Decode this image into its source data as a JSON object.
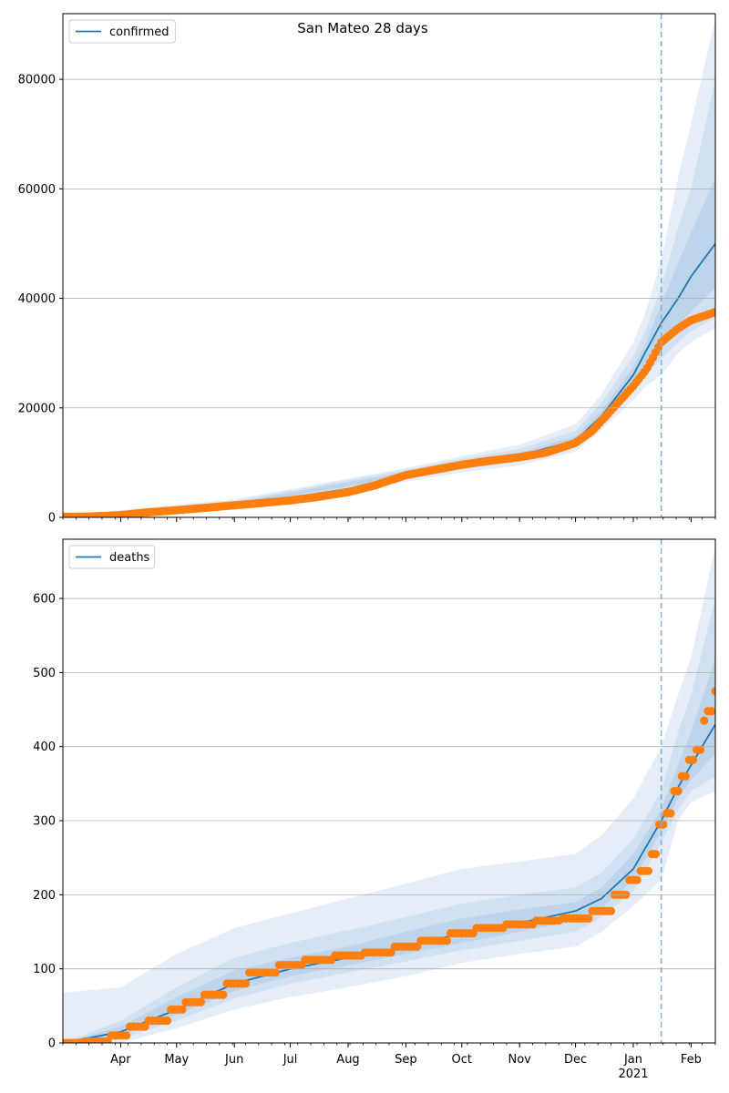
{
  "title": "San Mateo 28 days",
  "chart_data": [
    {
      "type": "line",
      "title": "San Mateo 28 days",
      "legend": {
        "entries": [
          "confirmed"
        ],
        "placement": "top-left"
      },
      "x_range": [
        "2020-03-01",
        "2021-02-14"
      ],
      "ylim": [
        0,
        92000
      ],
      "yticks": [
        0,
        20000,
        40000,
        60000,
        80000
      ],
      "grid": "y",
      "forecast_start": "2021-01-16",
      "observed": {
        "x": [
          "2020-03-01",
          "2020-03-15",
          "2020-04-01",
          "2020-04-15",
          "2020-05-01",
          "2020-05-15",
          "2020-06-01",
          "2020-06-15",
          "2020-07-01",
          "2020-07-15",
          "2020-08-01",
          "2020-08-15",
          "2020-09-01",
          "2020-09-15",
          "2020-10-01",
          "2020-10-15",
          "2020-11-01",
          "2020-11-15",
          "2020-12-01",
          "2020-12-10",
          "2020-12-20",
          "2021-01-01",
          "2021-01-08",
          "2021-01-16",
          "2021-01-25",
          "2021-02-01",
          "2021-02-14"
        ],
        "y": [
          100,
          150,
          400,
          900,
          1300,
          1700,
          2200,
          2600,
          3100,
          3700,
          4600,
          5800,
          7700,
          8600,
          9600,
          10300,
          11000,
          11800,
          13600,
          15800,
          19500,
          24000,
          27000,
          32000,
          34500,
          36000,
          37500
        ]
      },
      "fit": {
        "name": "confirmed",
        "x": [
          "2020-03-01",
          "2020-04-01",
          "2020-05-01",
          "2020-06-01",
          "2020-07-01",
          "2020-08-01",
          "2020-09-01",
          "2020-10-01",
          "2020-11-01",
          "2020-12-01",
          "2020-12-15",
          "2021-01-01",
          "2021-01-08",
          "2021-01-16",
          "2021-01-25",
          "2021-02-01",
          "2021-02-14"
        ],
        "y": [
          100,
          500,
          1400,
          2400,
          3600,
          5200,
          7800,
          9800,
          11300,
          14000,
          18500,
          26000,
          30500,
          35500,
          40000,
          44000,
          50000
        ]
      },
      "bands": {
        "x": [
          "2020-03-01",
          "2020-06-01",
          "2020-09-01",
          "2020-10-01",
          "2020-11-01",
          "2020-12-01",
          "2020-12-15",
          "2021-01-01",
          "2021-01-08",
          "2021-01-16",
          "2021-01-25",
          "2021-02-01",
          "2021-02-14"
        ],
        "lower": [
          [
            0,
            1700,
            6500,
            8200,
            9500,
            12000,
            16000,
            21500,
            24000,
            26000,
            30000,
            32000,
            34500
          ],
          [
            0,
            2000,
            7000,
            8800,
            10200,
            12800,
            17000,
            23000,
            26000,
            29000,
            32000,
            34000,
            36500
          ],
          [
            0,
            2200,
            7400,
            9300,
            10800,
            13400,
            17800,
            24500,
            28500,
            32000,
            35000,
            37500,
            42000
          ]
        ],
        "upper": [
          [
            300,
            3300,
            9000,
            11200,
            13300,
            17000,
            22500,
            32000,
            38000,
            47000,
            62000,
            72000,
            91000
          ],
          [
            250,
            3000,
            8700,
            10700,
            12500,
            15800,
            21000,
            29500,
            34500,
            42000,
            53000,
            60000,
            80000
          ],
          [
            200,
            2700,
            8300,
            10300,
            11800,
            14800,
            19500,
            27500,
            32000,
            39000,
            46500,
            52000,
            62000
          ]
        ]
      }
    },
    {
      "type": "line",
      "legend": {
        "entries": [
          "deaths"
        ],
        "placement": "top-left"
      },
      "x_range": [
        "2020-03-01",
        "2021-02-14"
      ],
      "ylim": [
        0,
        680
      ],
      "yticks": [
        0,
        100,
        200,
        300,
        400,
        500,
        600
      ],
      "grid": "y",
      "forecast_start": "2021-01-16",
      "x_tick_labels": [
        {
          "date": "2020-04-01",
          "label": "Apr"
        },
        {
          "date": "2020-05-01",
          "label": "May"
        },
        {
          "date": "2020-06-01",
          "label": "Jun"
        },
        {
          "date": "2020-07-01",
          "label": "Jul"
        },
        {
          "date": "2020-08-01",
          "label": "Aug"
        },
        {
          "date": "2020-09-01",
          "label": "Sep"
        },
        {
          "date": "2020-10-01",
          "label": "Oct"
        },
        {
          "date": "2020-11-01",
          "label": "Nov"
        },
        {
          "date": "2020-12-01",
          "label": "Dec"
        },
        {
          "date": "2021-01-01",
          "label": "Jan",
          "sublabel": "2021"
        },
        {
          "date": "2021-02-01",
          "label": "Feb"
        }
      ],
      "observed": {
        "x": [
          "2020-03-01",
          "2020-03-20",
          "2020-04-01",
          "2020-04-10",
          "2020-04-20",
          "2020-05-01",
          "2020-05-10",
          "2020-05-20",
          "2020-06-01",
          "2020-06-15",
          "2020-07-01",
          "2020-07-15",
          "2020-08-01",
          "2020-08-15",
          "2020-09-01",
          "2020-09-15",
          "2020-10-01",
          "2020-10-15",
          "2020-11-01",
          "2020-11-15",
          "2020-12-01",
          "2020-12-15",
          "2020-12-25",
          "2021-01-01",
          "2021-01-08",
          "2021-01-12",
          "2021-01-16",
          "2021-01-20",
          "2021-01-24",
          "2021-01-28",
          "2021-02-01",
          "2021-02-04",
          "2021-02-08",
          "2021-02-11",
          "2021-02-14"
        ],
        "y": [
          0,
          2,
          10,
          22,
          30,
          45,
          55,
          65,
          80,
          95,
          105,
          112,
          118,
          122,
          130,
          138,
          148,
          155,
          160,
          165,
          168,
          178,
          200,
          220,
          232,
          255,
          295,
          310,
          340,
          360,
          382,
          396,
          435,
          448,
          475
        ]
      },
      "fit": {
        "name": "deaths",
        "x": [
          "2020-03-01",
          "2020-04-01",
          "2020-05-01",
          "2020-06-01",
          "2020-07-01",
          "2020-08-01",
          "2020-09-01",
          "2020-10-01",
          "2020-11-01",
          "2020-12-01",
          "2020-12-15",
          "2021-01-01",
          "2021-01-16",
          "2021-01-25",
          "2021-02-01",
          "2021-02-14"
        ],
        "y": [
          0,
          15,
          45,
          80,
          100,
          115,
          130,
          148,
          162,
          178,
          195,
          235,
          300,
          345,
          375,
          430
        ]
      },
      "bands": {
        "x": [
          "2020-03-01",
          "2020-04-01",
          "2020-05-01",
          "2020-06-01",
          "2020-07-01",
          "2020-08-01",
          "2020-09-01",
          "2020-10-01",
          "2020-11-01",
          "2020-12-01",
          "2020-12-15",
          "2021-01-01",
          "2021-01-16",
          "2021-01-25",
          "2021-02-01",
          "2021-02-14"
        ],
        "lower": [
          [
            0,
            0,
            20,
            45,
            62,
            75,
            90,
            108,
            120,
            130,
            150,
            185,
            220,
            300,
            325,
            340
          ],
          [
            0,
            5,
            30,
            60,
            80,
            95,
            110,
            125,
            138,
            150,
            170,
            205,
            270,
            315,
            340,
            360
          ],
          [
            0,
            10,
            38,
            70,
            90,
            105,
            120,
            135,
            150,
            165,
            182,
            220,
            285,
            330,
            355,
            390
          ]
        ],
        "upper": [
          [
            68,
            75,
            120,
            155,
            175,
            195,
            215,
            235,
            245,
            255,
            280,
            330,
            400,
            470,
            520,
            670
          ],
          [
            0,
            30,
            75,
            115,
            135,
            152,
            170,
            188,
            200,
            210,
            230,
            275,
            340,
            420,
            470,
            600
          ],
          [
            0,
            22,
            62,
            98,
            115,
            130,
            150,
            168,
            180,
            190,
            210,
            255,
            315,
            375,
            420,
            520
          ]
        ]
      }
    }
  ]
}
